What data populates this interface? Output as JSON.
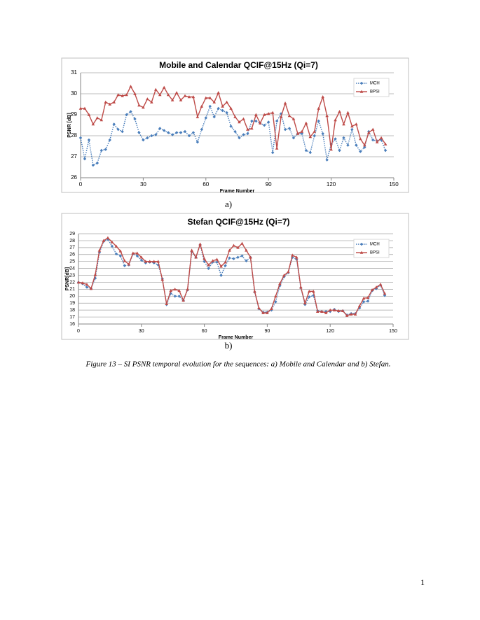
{
  "chart_data": [
    {
      "type": "line",
      "title": "Mobile and Calendar QCIF@15Hz (Qi=7)",
      "x_label": "Frame Number",
      "y_label": "PSNR [dB]",
      "x": [
        0,
        2,
        4,
        6,
        8,
        10,
        12,
        14,
        16,
        18,
        20,
        22,
        24,
        26,
        28,
        30,
        32,
        34,
        36,
        38,
        40,
        42,
        44,
        46,
        48,
        50,
        52,
        54,
        56,
        58,
        60,
        62,
        64,
        66,
        68,
        70,
        72,
        74,
        76,
        78,
        80,
        82,
        84,
        86,
        88,
        90,
        92,
        94,
        96,
        98,
        100,
        102,
        104,
        106,
        108,
        110,
        112,
        114,
        116,
        118,
        120,
        122,
        124,
        126,
        128,
        130,
        132,
        134,
        136,
        138,
        140,
        142,
        144,
        146
      ],
      "series": [
        {
          "name": "MCH",
          "color": "#4a7ebb",
          "linestyle": "dotted",
          "marker": "diamond",
          "values": [
            27.9,
            26.9,
            27.8,
            26.6,
            26.7,
            27.3,
            27.35,
            27.8,
            28.55,
            28.3,
            28.2,
            29.0,
            29.15,
            28.8,
            28.15,
            27.8,
            27.9,
            28.0,
            28.05,
            28.35,
            28.25,
            28.15,
            28.05,
            28.15,
            28.15,
            28.2,
            28.0,
            28.15,
            27.7,
            28.3,
            28.85,
            29.4,
            28.9,
            29.3,
            29.2,
            29.1,
            28.45,
            28.2,
            27.9,
            28.05,
            28.1,
            28.7,
            28.7,
            28.6,
            28.5,
            28.65,
            27.2,
            28.7,
            29.05,
            28.3,
            28.35,
            27.9,
            28.1,
            28.1,
            27.3,
            27.2,
            28.0,
            28.7,
            28.1,
            26.85,
            27.6,
            27.85,
            27.3,
            27.9,
            27.55,
            28.3,
            27.55,
            27.25,
            27.45,
            28.2,
            27.8,
            27.75,
            27.8,
            27.3
          ]
        },
        {
          "name": "BPSI",
          "color": "#be4b48",
          "linestyle": "solid",
          "marker": "triangle",
          "values": [
            29.3,
            29.3,
            29.0,
            28.55,
            28.85,
            28.75,
            29.6,
            29.5,
            29.6,
            29.95,
            29.9,
            29.95,
            30.35,
            30.0,
            29.45,
            29.35,
            29.75,
            29.6,
            30.2,
            29.95,
            30.3,
            29.95,
            29.7,
            30.05,
            29.7,
            29.9,
            29.85,
            29.85,
            28.9,
            29.4,
            29.8,
            29.8,
            29.6,
            30.05,
            29.4,
            29.6,
            29.3,
            28.9,
            28.65,
            28.8,
            28.3,
            28.35,
            29.0,
            28.6,
            29.0,
            29.05,
            29.1,
            27.4,
            28.9,
            29.55,
            28.95,
            28.8,
            28.1,
            28.2,
            28.6,
            27.95,
            28.2,
            29.3,
            29.85,
            28.95,
            27.35,
            28.75,
            29.15,
            28.55,
            29.1,
            28.45,
            28.55,
            27.85,
            27.55,
            28.15,
            28.3,
            27.7,
            27.9,
            27.6
          ]
        }
      ],
      "xlim": [
        0,
        150
      ],
      "xticks": [
        0,
        30,
        60,
        90,
        120,
        150
      ],
      "ylim": [
        26,
        31
      ],
      "yticks": [
        26,
        27,
        28,
        29,
        30,
        31
      ],
      "grid": true,
      "legend": "upper right"
    },
    {
      "type": "line",
      "title": "Stefan QCIF@15Hz (Qi=7)",
      "x_label": "Frame Number",
      "y_label": "PSNR[dB]",
      "x": [
        0,
        2,
        4,
        6,
        8,
        10,
        12,
        14,
        16,
        18,
        20,
        22,
        24,
        26,
        28,
        30,
        32,
        34,
        36,
        38,
        40,
        42,
        44,
        46,
        48,
        50,
        52,
        54,
        56,
        58,
        60,
        62,
        64,
        66,
        68,
        70,
        72,
        74,
        76,
        78,
        80,
        82,
        84,
        86,
        88,
        90,
        92,
        94,
        96,
        98,
        100,
        102,
        104,
        106,
        108,
        110,
        112,
        114,
        116,
        118,
        120,
        122,
        124,
        126,
        128,
        130,
        132,
        134,
        136,
        138,
        140,
        142,
        144,
        146
      ],
      "series": [
        {
          "name": "MCH",
          "color": "#4a7ebb",
          "linestyle": "dotted",
          "marker": "diamond",
          "values": [
            22.0,
            21.8,
            21.3,
            21.1,
            22.6,
            26.3,
            27.9,
            28.2,
            27.2,
            26.1,
            25.8,
            24.4,
            24.5,
            26.1,
            25.8,
            25.2,
            24.8,
            24.9,
            24.8,
            24.5,
            22.5,
            18.8,
            20.4,
            20.0,
            20.0,
            19.4,
            20.9,
            26.4,
            25.6,
            27.4,
            25.0,
            24.0,
            24.9,
            24.9,
            23.0,
            24.4,
            25.5,
            25.4,
            25.6,
            25.8,
            25.1,
            25.6,
            20.6,
            18.2,
            17.7,
            17.7,
            18.0,
            19.2,
            21.5,
            22.8,
            23.4,
            25.6,
            25.3,
            21.2,
            18.8,
            19.9,
            20.1,
            17.9,
            17.8,
            17.8,
            17.8,
            18.1,
            17.8,
            17.9,
            17.3,
            17.5,
            17.5,
            18.3,
            19.2,
            19.3,
            20.8,
            21.1,
            21.6,
            20.1
          ]
        },
        {
          "name": "BPSI",
          "color": "#be4b48",
          "linestyle": "solid",
          "marker": "triangle",
          "values": [
            22.0,
            21.9,
            21.7,
            21.1,
            23.1,
            26.6,
            28.0,
            28.4,
            27.8,
            27.2,
            26.5,
            25.1,
            24.6,
            26.2,
            26.2,
            25.6,
            25.0,
            25.0,
            25.0,
            25.0,
            22.4,
            18.9,
            20.8,
            21.0,
            20.8,
            19.4,
            21.0,
            26.6,
            25.6,
            27.5,
            25.4,
            24.5,
            25.1,
            25.3,
            24.3,
            24.9,
            26.6,
            27.3,
            27.0,
            27.6,
            26.6,
            25.6,
            20.7,
            18.3,
            17.6,
            17.6,
            18.2,
            20.0,
            21.8,
            23.0,
            23.5,
            25.9,
            25.6,
            21.3,
            19.0,
            20.7,
            20.7,
            17.8,
            17.8,
            17.6,
            18.0,
            18.0,
            17.9,
            17.9,
            17.2,
            17.4,
            17.4,
            18.6,
            19.7,
            19.8,
            20.9,
            21.3,
            21.7,
            20.4
          ]
        }
      ],
      "xlim": [
        0,
        150
      ],
      "xticks": [
        0,
        30,
        60,
        90,
        120,
        150
      ],
      "ylim": [
        16,
        29
      ],
      "yticks": [
        16,
        17,
        18,
        19,
        20,
        21,
        22,
        23,
        24,
        25,
        26,
        27,
        28,
        29
      ],
      "grid": true,
      "legend": "upper right"
    }
  ],
  "figure": {
    "labels": [
      "a)",
      "b)"
    ],
    "caption": "Figure 13 – SI PSNR temporal evolution for the sequences: a) Mobile and Calendar and b) Stefan."
  },
  "page_number": "1"
}
